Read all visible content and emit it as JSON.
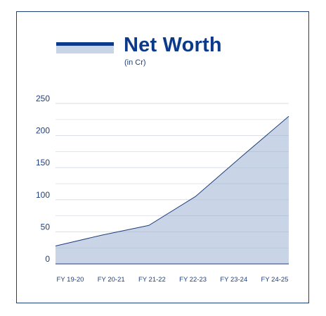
{
  "header": {
    "title": "Net Worth",
    "subtitle": "(in Cr)"
  },
  "colors": {
    "accent": "#0b3a8a",
    "area_fill": "#c9d5e7",
    "line": "#1f3f7a",
    "grid": "#d9dde5",
    "frame": "#1f3f7a"
  },
  "chart_data": {
    "type": "area",
    "title": "Net Worth",
    "subtitle": "(in Cr)",
    "categories": [
      "FY 19-20",
      "FY 20-21",
      "FY 21-22",
      "FY 22-23",
      "FY 23-24",
      "FY 24-25"
    ],
    "series": [
      {
        "values": [
          28,
          45,
          60,
          105,
          168,
          230
        ]
      }
    ],
    "xlabel": "",
    "ylabel": "",
    "ylim": [
      0,
      250
    ],
    "yticks": [
      0,
      50,
      100,
      150,
      200,
      250
    ],
    "grid": true,
    "legend": "top-left"
  }
}
